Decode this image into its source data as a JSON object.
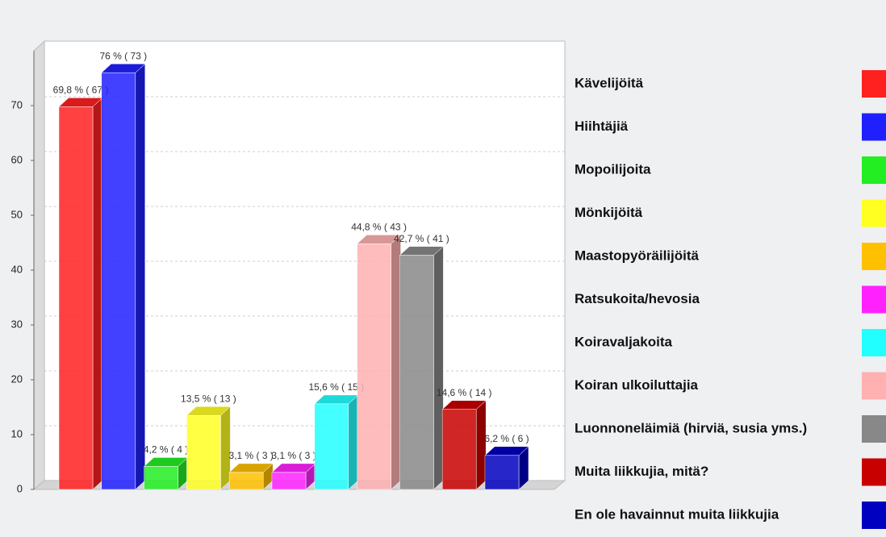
{
  "chart_data": {
    "type": "bar",
    "categories": [
      "Kävelijöitä",
      "Hiihtäjiä",
      "Mopoilijoita",
      "Mönkijöitä",
      "Maastopyöräilijöitä",
      "Ratsukoita/hevosia",
      "Koiravaljakoita",
      "Koiran ulkoiluttajia",
      "Luonnoneläimiä (hirviä, susia yms.)",
      "Muita liikkujia, mitä?",
      "En ole havainnut muita liikkujia"
    ],
    "values": [
      69.8,
      76,
      4.2,
      13.5,
      3.1,
      3.1,
      15.6,
      44.8,
      42.7,
      14.6,
      6.2
    ],
    "value_labels": [
      "69,8 % ( 67 )",
      "76 % ( 73 )",
      "4,2 % ( 4 )",
      "13,5 % ( 13 )",
      "3,1 % ( 3 )",
      "3,1 % ( 3 )",
      "15,6 % ( 15 )",
      "44,8 % ( 43 )",
      "42,7 % ( 41 )",
      "14,6 % ( 14 )",
      "6,2 % ( 6 )"
    ],
    "colors": [
      "#ff2020",
      "#2020ff",
      "#22ee22",
      "#ffff22",
      "#ffc000",
      "#ff22ff",
      "#22ffff",
      "#ffb0b0",
      "#888888",
      "#c80000",
      "#0000c0"
    ],
    "ylim": [
      0,
      80
    ],
    "yticks": [
      0,
      10,
      20,
      30,
      40,
      50,
      60,
      70
    ],
    "grid": true
  }
}
